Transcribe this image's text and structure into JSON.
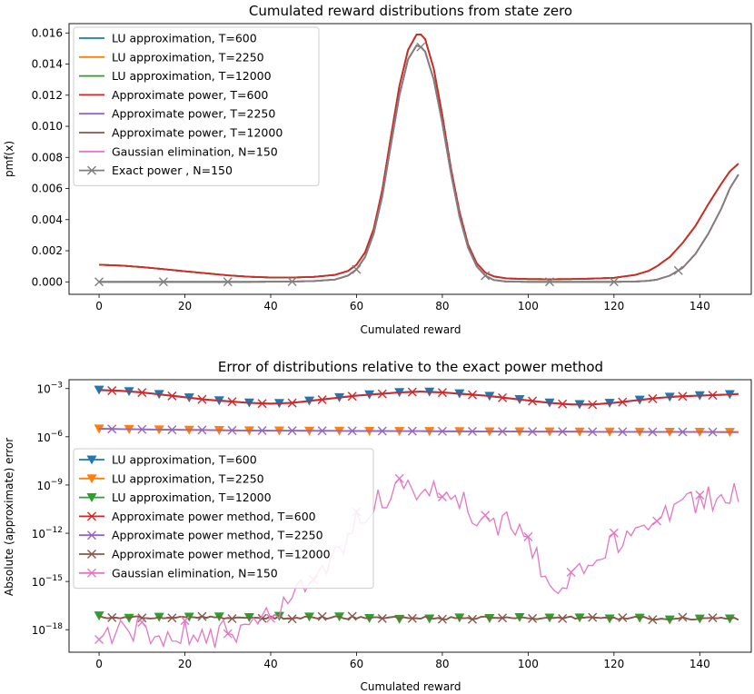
{
  "chart_data": [
    {
      "type": "line",
      "title": "Cumulated reward distributions from state zero",
      "xlabel": "Cumulated reward",
      "ylabel": "pmf(x)",
      "xlim": [
        -7,
        152
      ],
      "ylim": [
        -0.0008,
        0.0166
      ],
      "xticks": [
        0,
        20,
        40,
        60,
        80,
        100,
        120,
        140
      ],
      "xtick_labels": [
        "0",
        "20",
        "40",
        "60",
        "80",
        "100",
        "120",
        "140"
      ],
      "yticks": [
        0,
        0.002,
        0.004,
        0.006,
        0.008,
        0.01,
        0.012,
        0.014,
        0.016
      ],
      "ytick_labels": [
        "0.000",
        "0.002",
        "0.004",
        "0.006",
        "0.008",
        "0.010",
        "0.012",
        "0.014",
        "0.016"
      ],
      "legend_position": "top-left",
      "series": [
        {
          "name": "LU approximation, T=600",
          "color": "#1f77b4",
          "curve": "approx",
          "marker": "none"
        },
        {
          "name": "LU approximation, T=2250",
          "color": "#ff7f0e",
          "curve": "approx",
          "marker": "none"
        },
        {
          "name": "LU approximation, T=12000",
          "color": "#2ca02c",
          "curve": "approx",
          "marker": "none"
        },
        {
          "name": "Approximate power, T=600",
          "color": "#d62728",
          "curve": "approx",
          "marker": "none"
        },
        {
          "name": "Approximate power, T=2250",
          "color": "#9467bd",
          "curve": "exact",
          "marker": "none"
        },
        {
          "name": "Approximate power, T=12000",
          "color": "#8c564b",
          "curve": "exact",
          "marker": "none"
        },
        {
          "name": "Gaussian elimination, N=150",
          "color": "#e377c2",
          "curve": "exact",
          "marker": "none"
        },
        {
          "name": "Exact power , N=150",
          "color": "#7f7f7f",
          "curve": "exact",
          "marker": "x",
          "marker_every": 15
        }
      ],
      "curves": {
        "x": [
          0,
          5,
          10,
          15,
          20,
          25,
          30,
          35,
          40,
          45,
          50,
          55,
          58,
          60,
          62,
          64,
          66,
          68,
          70,
          72,
          74,
          75,
          76,
          78,
          80,
          82,
          84,
          86,
          88,
          90,
          92,
          95,
          100,
          105,
          110,
          115,
          120,
          125,
          128,
          130,
          133,
          136,
          139,
          142,
          145,
          147,
          149
        ],
        "exact": [
          0,
          0,
          0,
          0,
          0,
          0,
          0,
          0,
          1e-05,
          2e-05,
          5e-05,
          0.00015,
          0.0004,
          0.0008,
          0.0016,
          0.0031,
          0.0055,
          0.0088,
          0.012,
          0.0143,
          0.0152,
          0.0151,
          0.0148,
          0.013,
          0.0102,
          0.007,
          0.0042,
          0.0022,
          0.001,
          0.0004,
          0.00012,
          2e-05,
          0,
          0,
          0,
          0,
          0,
          2e-05,
          7e-05,
          0.00014,
          0.0004,
          0.0009,
          0.0018,
          0.0031,
          0.0047,
          0.006,
          0.0069
        ],
        "approx": [
          0.0011,
          0.00105,
          0.00095,
          0.00082,
          0.00068,
          0.00055,
          0.00042,
          0.00033,
          0.00028,
          0.00028,
          0.00032,
          0.00045,
          0.0007,
          0.0011,
          0.0019,
          0.0034,
          0.0059,
          0.0093,
          0.0126,
          0.0149,
          0.0159,
          0.0159,
          0.0156,
          0.0137,
          0.0107,
          0.0073,
          0.0045,
          0.0024,
          0.0012,
          0.0006,
          0.00035,
          0.00022,
          0.00018,
          0.00017,
          0.00018,
          0.00021,
          0.00026,
          0.00045,
          0.0007,
          0.001,
          0.0016,
          0.0025,
          0.0036,
          0.005,
          0.0063,
          0.0071,
          0.0076
        ]
      }
    },
    {
      "type": "line",
      "yscale": "log",
      "title": "Error of distributions relative to the exact power method",
      "xlabel": "Cumulated reward",
      "ylabel": "Absolute (approximate) error",
      "xlim": [
        -7,
        152
      ],
      "ylim_exp": [
        -19.4,
        -2.45
      ],
      "xticks": [
        0,
        20,
        40,
        60,
        80,
        100,
        120,
        140
      ],
      "xtick_labels": [
        "0",
        "20",
        "40",
        "60",
        "80",
        "100",
        "120",
        "140"
      ],
      "ytick_exps": [
        -3,
        -6,
        -9,
        -12,
        -15,
        -18
      ],
      "ytick_base": "10",
      "ytick_exp_labels": [
        "−3",
        "−6",
        "−9",
        "−12",
        "−15",
        "−18"
      ],
      "legend_position": "center-left",
      "series": [
        {
          "name": "LU approximation, T=600",
          "color": "#1f77b4",
          "marker": "v",
          "group": "high",
          "marker_start": 0,
          "marker_every": 7,
          "shift": 0.02
        },
        {
          "name": "LU approximation, T=2250",
          "color": "#ff7f0e",
          "marker": "v",
          "group": "mid",
          "marker_start": 0,
          "marker_every": 7,
          "shift": 0
        },
        {
          "name": "LU approximation, T=12000",
          "color": "#2ca02c",
          "marker": "v",
          "group": "low",
          "marker_start": 0,
          "marker_every": 7,
          "shift": 0
        },
        {
          "name": "Approximate power method, T=600",
          "color": "#d62728",
          "marker": "x",
          "group": "high",
          "marker_start": 0,
          "marker_every": 7,
          "shift": 0,
          "offset": 3
        },
        {
          "name": "Approximate power method, T=2250",
          "color": "#9467bd",
          "marker": "x",
          "group": "mid",
          "marker_start": 0,
          "marker_every": 7,
          "shift": 0,
          "offset": 3
        },
        {
          "name": "Approximate power method, T=12000",
          "color": "#8c564b",
          "marker": "x",
          "group": "low",
          "marker_start": 0,
          "marker_every": 7,
          "shift": 0,
          "offset": 3
        },
        {
          "name": "Gaussian elimination, N=150",
          "color": "#e377c2",
          "marker": "x",
          "group": "gauss",
          "marker_start": 0,
          "marker_every": 10,
          "shift": 0
        }
      ],
      "curves_log10": {
        "x": [
          0,
          5,
          10,
          15,
          20,
          25,
          30,
          35,
          40,
          45,
          50,
          55,
          60,
          65,
          70,
          75,
          80,
          85,
          90,
          95,
          100,
          105,
          110,
          115,
          120,
          125,
          130,
          135,
          140,
          145,
          149
        ],
        "high": [
          -3.1,
          -3.15,
          -3.25,
          -3.4,
          -3.55,
          -3.7,
          -3.8,
          -3.9,
          -3.95,
          -3.9,
          -3.75,
          -3.6,
          -3.45,
          -3.35,
          -3.25,
          -3.2,
          -3.25,
          -3.35,
          -3.45,
          -3.6,
          -3.75,
          -3.9,
          -4.0,
          -4.0,
          -3.9,
          -3.75,
          -3.6,
          -3.5,
          -3.45,
          -3.4,
          -3.35
        ],
        "mid": [
          -5.5,
          -5.52,
          -5.54,
          -5.56,
          -5.57,
          -5.58,
          -5.6,
          -5.61,
          -5.62,
          -5.62,
          -5.63,
          -5.63,
          -5.64,
          -5.64,
          -5.65,
          -5.65,
          -5.66,
          -5.66,
          -5.67,
          -5.67,
          -5.68,
          -5.68,
          -5.68,
          -5.69,
          -5.69,
          -5.69,
          -5.7,
          -5.7,
          -5.7,
          -5.71,
          -5.71
        ],
        "low": [
          -17.2,
          -17.22,
          -17.2,
          -17.25,
          -17.22,
          -17.2,
          -17.24,
          -17.26,
          -17.22,
          -17.25,
          -17.24,
          -17.26,
          -17.25,
          -17.28,
          -17.26,
          -17.24,
          -17.27,
          -17.28,
          -17.26,
          -17.27,
          -17.3,
          -17.28,
          -17.27,
          -17.29,
          -17.3,
          -17.28,
          -17.3,
          -17.31,
          -17.29,
          -17.3,
          -17.3
        ],
        "gauss": [
          -18.7,
          -18.2,
          -17.95,
          -19.1,
          -18.1,
          -18.5,
          -18.1,
          -17.9,
          -17.3,
          -16.2,
          -14.8,
          -13.3,
          -11.3,
          -10.0,
          -9.35,
          -9.6,
          -9.25,
          -10.2,
          -11.6,
          -11.3,
          -12.7,
          -15.2,
          -14.6,
          -13.3,
          -12.6,
          -11.7,
          -11.2,
          -10.4,
          -9.95,
          -9.8,
          -9.65
        ]
      }
    }
  ]
}
